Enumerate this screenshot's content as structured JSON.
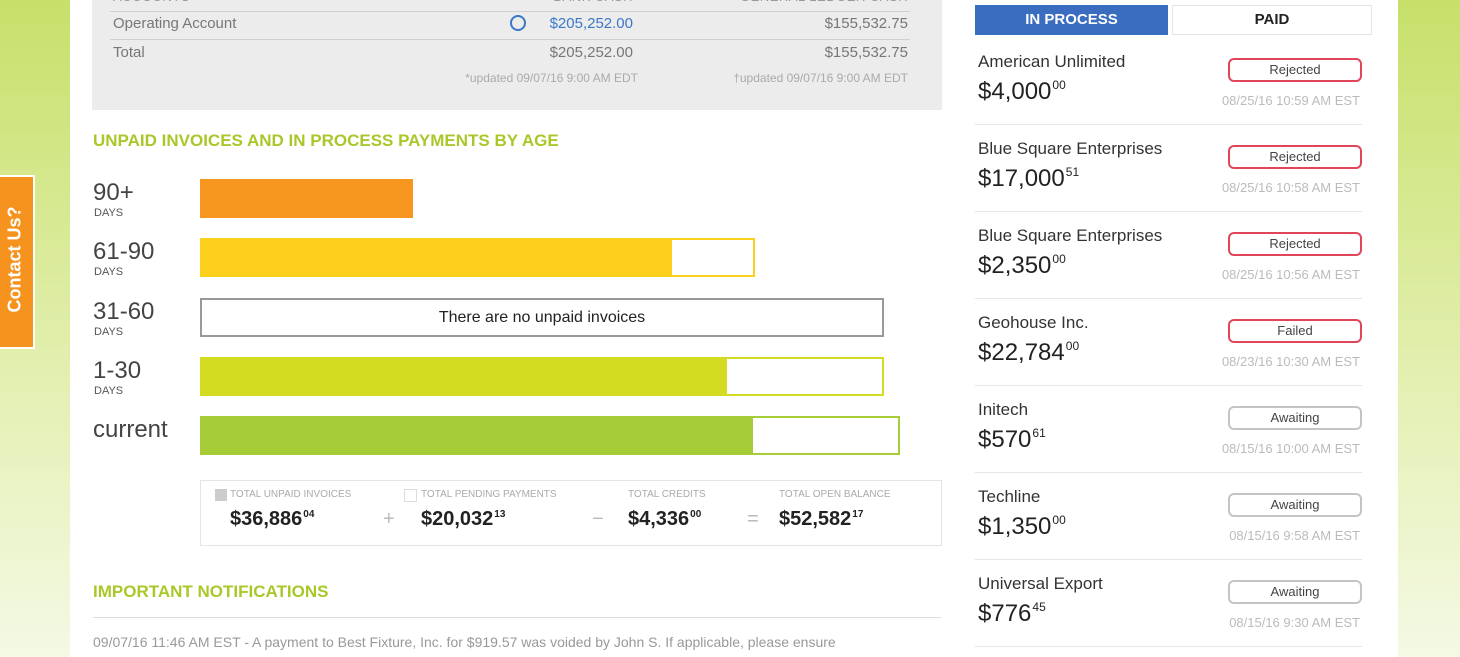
{
  "contact_tab": "Contact Us?",
  "account_summary": {
    "headers": [
      "ACCOUNTS",
      "BANK CASH",
      "GENERAL LEDGER CASH"
    ],
    "rows": [
      {
        "label": "Operating Account",
        "bank_cash": "$205,252.00",
        "ledger_cash": "$155,532.75"
      },
      {
        "label": "Total",
        "bank_cash": "$205,252.00",
        "ledger_cash": "$155,532.75"
      }
    ],
    "bank_note": "*updated 09/07/16 9:00 AM EDT",
    "ledger_note": "†updated 09/07/16 9:00 AM EDT"
  },
  "aging": {
    "title": "UNPAID INVOICES AND IN PROCESS PAYMENTS BY AGE",
    "buckets": [
      {
        "label": "90+",
        "unit": "DAYS"
      },
      {
        "label": "61-90",
        "unit": "DAYS"
      },
      {
        "label": "31-60",
        "unit": "DAYS"
      },
      {
        "label": "1-30",
        "unit": "DAYS"
      },
      {
        "label": "current"
      }
    ],
    "empty_message": "There are no unpaid invoices"
  },
  "totals": {
    "items": [
      {
        "label": "TOTAL UNPAID INVOICES",
        "whole": "$36,886",
        "cents": "04"
      },
      {
        "label": "TOTAL PENDING PAYMENTS",
        "whole": "$20,032",
        "cents": "13"
      },
      {
        "label": "TOTAL CREDITS",
        "whole": "$4,336",
        "cents": "00"
      },
      {
        "label": "TOTAL OPEN BALANCE",
        "whole": "$52,582",
        "cents": "17"
      }
    ],
    "operators": [
      "+",
      "−",
      "="
    ]
  },
  "notifications": {
    "title": "IMPORTANT NOTIFICATIONS",
    "items": [
      "09/07/16 11:46 AM EST - A payment to Best Fixture, Inc. for $919.57 was voided by John S. If applicable, please ensure"
    ]
  },
  "payments": {
    "tabs": [
      "IN PROCESS",
      "PAID"
    ],
    "items": [
      {
        "name": "American Unlimited",
        "whole": "$4,000",
        "cents": "00",
        "status": "Rejected",
        "badge_color": "#e0455a",
        "date": "08/25/16 10:59 AM EST"
      },
      {
        "name": "Blue Square Enterprises",
        "whole": "$17,000",
        "cents": "51",
        "status": "Rejected",
        "badge_color": "#e0455a",
        "date": "08/25/16 10:58 AM EST"
      },
      {
        "name": "Blue Square Enterprises",
        "whole": "$2,350",
        "cents": "00",
        "status": "Rejected",
        "badge_color": "#e0455a",
        "date": "08/25/16 10:56 AM EST"
      },
      {
        "name": "Geohouse Inc.",
        "whole": "$22,784",
        "cents": "00",
        "status": "Failed",
        "badge_color": "#e0455a",
        "date": "08/23/16 10:30 AM EST"
      },
      {
        "name": "Initech",
        "whole": "$570",
        "cents": "61",
        "status": "Awaiting",
        "badge_color": "#c4c4c4",
        "date": "08/15/16 10:00 AM EST"
      },
      {
        "name": "Techline",
        "whole": "$1,350",
        "cents": "00",
        "status": "Awaiting",
        "badge_color": "#c4c4c4",
        "date": "08/15/16 9:58 AM EST"
      },
      {
        "name": "Universal Export",
        "whole": "$776",
        "cents": "45",
        "status": "Awaiting",
        "badge_color": "#c4c4c4",
        "date": "08/15/16 9:30 AM EST"
      }
    ]
  }
}
